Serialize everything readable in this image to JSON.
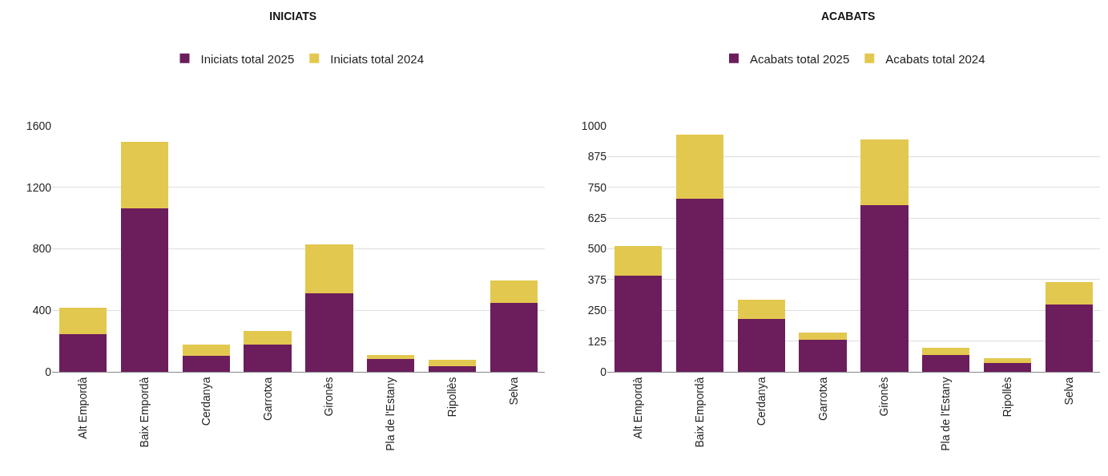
{
  "chart_data": [
    {
      "type": "bar",
      "title": "INICIATS",
      "stacked": true,
      "grid": "y",
      "legend": "top",
      "categories": [
        "Alt Empordà",
        "Baix Empordà",
        "Cerdanya",
        "Garrotxa",
        "Gironès",
        "Pla de l'Estany",
        "Ripollès",
        "Selva"
      ],
      "series": [
        {
          "name": "Iniciats total 2025",
          "color": "#6b1d5c",
          "values": [
            245,
            1063,
            102,
            175,
            510,
            82,
            39,
            447
          ]
        },
        {
          "name": "Iniciats total 2024",
          "color": "#e3c84f",
          "values": [
            170,
            431,
            75,
            90,
            318,
            25,
            40,
            145
          ]
        }
      ],
      "ylim": [
        0,
        1600
      ],
      "yticks": [
        0,
        400,
        800,
        1200,
        1600
      ]
    },
    {
      "type": "bar",
      "title": "ACABATS",
      "stacked": true,
      "grid": "y",
      "legend": "top",
      "categories": [
        "Alt Empordà",
        "Baix Empordà",
        "Cerdanya",
        "Garrotxa",
        "Gironès",
        "Pla de l'Estany",
        "Ripollès",
        "Selva"
      ],
      "series": [
        {
          "name": "Acabats total 2025",
          "color": "#6b1d5c",
          "values": [
            391,
            702,
            216,
            130,
            678,
            68,
            35,
            275
          ]
        },
        {
          "name": "Acabats total 2024",
          "color": "#e3c84f",
          "values": [
            121,
            263,
            76,
            29,
            268,
            31,
            21,
            90
          ]
        }
      ],
      "ylim": [
        0,
        1000
      ],
      "yticks": [
        0,
        125,
        250,
        375,
        500,
        625,
        750,
        875,
        1000
      ]
    }
  ]
}
